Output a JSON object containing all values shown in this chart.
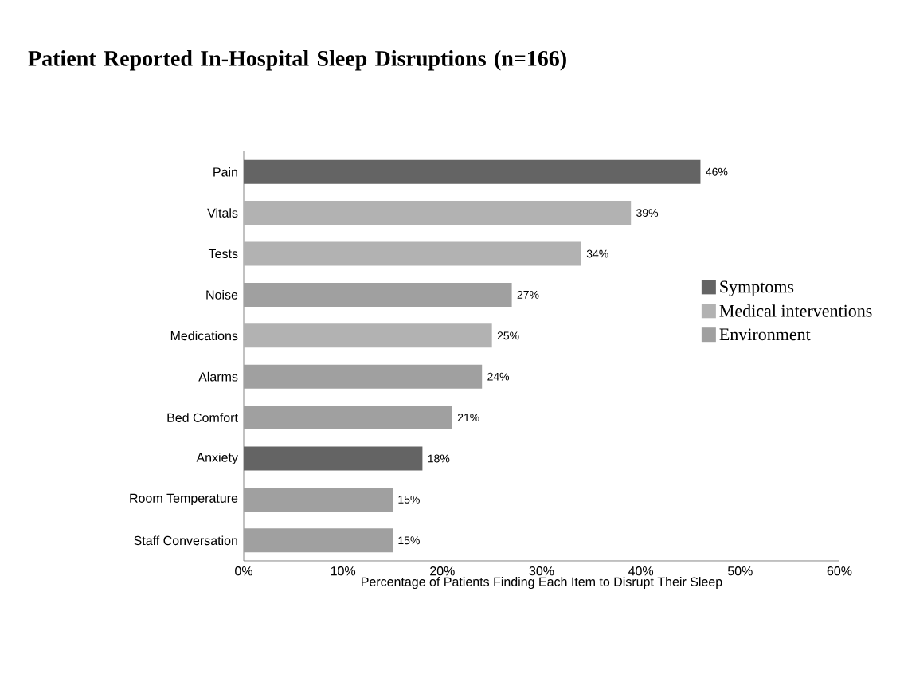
{
  "chart_data": {
    "type": "bar",
    "orientation": "horizontal",
    "title": "Patient Reported In-Hospital Sleep Disruptions (n=166)",
    "xlabel": "Percentage of Patients Finding Each Item to Disrupt Their Sleep",
    "categories": [
      "Pain",
      "Vitals",
      "Tests",
      "Noise",
      "Medications",
      "Alarms",
      "Bed Comfort",
      "Anxiety",
      "Room Temperature",
      "Staff Conversation"
    ],
    "series": [
      {
        "name": "Symptoms",
        "color": "#646464",
        "values": [
          46,
          null,
          null,
          null,
          null,
          null,
          null,
          18,
          null,
          null
        ],
        "value_labels": [
          "46%",
          null,
          null,
          null,
          null,
          null,
          null,
          "18%",
          null,
          null
        ]
      },
      {
        "name": "Medical interventions",
        "color": "#b2b2b2",
        "values": [
          null,
          39,
          34,
          null,
          25,
          null,
          null,
          null,
          null,
          null
        ],
        "value_labels": [
          null,
          "39%",
          "34%",
          null,
          "25%",
          null,
          null,
          null,
          null,
          null
        ]
      },
      {
        "name": "Environment",
        "color": "#a0a0a0",
        "values": [
          null,
          null,
          null,
          27,
          null,
          24,
          21,
          null,
          15,
          15
        ],
        "value_labels": [
          null,
          null,
          null,
          "27%",
          null,
          "24%",
          "21%",
          null,
          "15%",
          "15%"
        ]
      }
    ],
    "xlim": [
      0,
      60
    ],
    "xticks": [
      {
        "value": 0,
        "label": "0%"
      },
      {
        "value": 10,
        "label": "10%"
      },
      {
        "value": 20,
        "label": "20%"
      },
      {
        "value": 30,
        "label": "30%"
      },
      {
        "value": 40,
        "label": "40%"
      },
      {
        "value": 50,
        "label": "50%"
      },
      {
        "value": 60,
        "label": "60%"
      }
    ],
    "grid": false,
    "legend": "right"
  }
}
